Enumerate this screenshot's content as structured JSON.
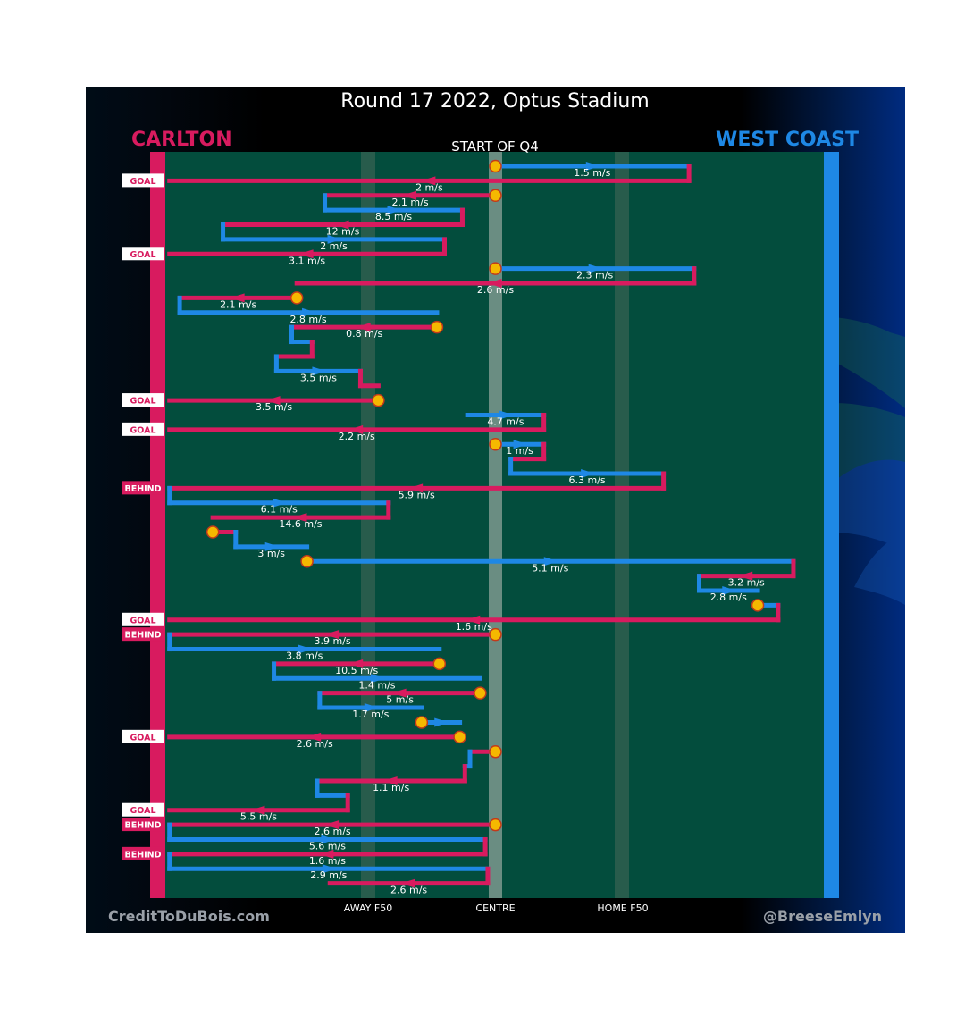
{
  "header": {
    "title": "Round 17 2022, Optus Stadium",
    "subtitle": "START OF Q4",
    "team_left": "CARLTON",
    "team_right": "WEST COAST",
    "credit_left": "CreditToDuBois.com",
    "credit_right": "@BreeseEmlyn"
  },
  "colors": {
    "carlton": "#d81b5f",
    "westcoast": "#1e88e5",
    "field": "#034d3d",
    "marker": "#f5b800"
  },
  "chart_data": {
    "type": "line",
    "x_ticks": [
      {
        "label": "AWAY F50",
        "x": -50
      },
      {
        "label": "CENTRE",
        "x": 0
      },
      {
        "label": "HOME F50",
        "x": 50
      }
    ],
    "xlim": [
      -130,
      130
    ],
    "outcomes": [
      {
        "label": "GOAL",
        "row": 1
      },
      {
        "label": "GOAL",
        "row": 6
      },
      {
        "label": "GOAL",
        "row": 16
      },
      {
        "label": "GOAL",
        "row": 18
      },
      {
        "label": "BEHIND",
        "row": 22
      },
      {
        "label": "GOAL",
        "row": 31
      },
      {
        "label": "BEHIND",
        "row": 32
      },
      {
        "label": "GOAL",
        "row": 39
      },
      {
        "label": "GOAL",
        "row": 44
      },
      {
        "label": "BEHIND",
        "row": 45
      },
      {
        "label": "BEHIND",
        "row": 47
      }
    ],
    "segments": [
      {
        "team": "westcoast",
        "row": 0,
        "x0": 0,
        "x1": 76,
        "speed": "1.5 m/s",
        "start_marker": true
      },
      {
        "team": "carlton",
        "row": 1,
        "x0": 76,
        "x1": -128,
        "speed": "2 m/s"
      },
      {
        "team": "carlton",
        "row": 2,
        "x0": 0,
        "x1": -67,
        "speed": "2.1 m/s",
        "start_marker": true
      },
      {
        "team": "westcoast",
        "row": 3,
        "x0": -67,
        "x1": -13,
        "speed": "8.5 m/s"
      },
      {
        "team": "carlton",
        "row": 4,
        "x0": -13,
        "x1": -107,
        "speed": "12 m/s"
      },
      {
        "team": "westcoast",
        "row": 5,
        "x0": -107,
        "x1": -20,
        "speed": "2 m/s"
      },
      {
        "team": "carlton",
        "row": 6,
        "x0": -20,
        "x1": -128,
        "speed": "3.1 m/s"
      },
      {
        "team": "westcoast",
        "row": 7,
        "x0": 0,
        "x1": 78,
        "speed": "2.3 m/s",
        "start_marker": true
      },
      {
        "team": "carlton",
        "row": 8,
        "x0": 78,
        "x1": -78,
        "speed": "2.6 m/s"
      },
      {
        "team": "carlton",
        "row": 9,
        "x0": -78,
        "x1": -124,
        "speed": "2.1 m/s",
        "start_marker": true
      },
      {
        "team": "westcoast",
        "row": 10,
        "x0": -124,
        "x1": -23,
        "speed": "2.8 m/s"
      },
      {
        "team": "carlton",
        "row": 11,
        "x0": -23,
        "x1": -80,
        "speed": "0.8 m/s",
        "start_marker": true
      },
      {
        "team": "westcoast",
        "row": 12,
        "x0": -80,
        "x1": -72,
        "speed": ""
      },
      {
        "team": "carlton",
        "row": 13,
        "x0": -72,
        "x1": -86,
        "speed": ""
      },
      {
        "team": "westcoast",
        "row": 14,
        "x0": -86,
        "x1": -53,
        "speed": "3.5 m/s"
      },
      {
        "team": "carlton",
        "row": 15,
        "x0": -53,
        "x1": -46,
        "speed": ""
      },
      {
        "team": "carlton",
        "row": 16,
        "x0": -46,
        "x1": -128,
        "speed": "3.5 m/s",
        "start_marker": true
      },
      {
        "team": "westcoast",
        "row": 17,
        "x0": -11,
        "x1": 19,
        "speed": "4.7 m/s"
      },
      {
        "team": "carlton",
        "row": 18,
        "x0": 19,
        "x1": -128,
        "speed": "2.2 m/s"
      },
      {
        "team": "westcoast",
        "row": 19,
        "x0": 0,
        "x1": 19,
        "speed": "1 m/s",
        "start_marker": true
      },
      {
        "team": "carlton",
        "row": 20,
        "x0": 19,
        "x1": 6,
        "speed": ""
      },
      {
        "team": "westcoast",
        "row": 21,
        "x0": 6,
        "x1": 66,
        "speed": "6.3 m/s"
      },
      {
        "team": "carlton",
        "row": 22,
        "x0": 66,
        "x1": -128,
        "speed": "5.9 m/s"
      },
      {
        "team": "westcoast",
        "row": 23,
        "x0": -128,
        "x1": -42,
        "speed": "6.1 m/s"
      },
      {
        "team": "carlton",
        "row": 24,
        "x0": -42,
        "x1": -111,
        "speed": "14.6 m/s"
      },
      {
        "team": "carlton",
        "row": 25,
        "x0": -111,
        "x1": -102,
        "speed": "",
        "start_marker": true
      },
      {
        "team": "westcoast",
        "row": 26,
        "x0": -102,
        "x1": -74,
        "speed": "3 m/s"
      },
      {
        "team": "westcoast",
        "row": 27,
        "x0": -74,
        "x1": 117,
        "speed": "5.1 m/s",
        "start_marker": true
      },
      {
        "team": "carlton",
        "row": 28,
        "x0": 117,
        "x1": 80,
        "speed": "3.2 m/s"
      },
      {
        "team": "westcoast",
        "row": 29,
        "x0": 80,
        "x1": 103,
        "speed": "2.8 m/s"
      },
      {
        "team": "westcoast",
        "row": 30,
        "x0": 103,
        "x1": 111,
        "speed": "",
        "start_marker": true
      },
      {
        "team": "carlton",
        "row": 31,
        "x0": 111,
        "x1": -128,
        "speed": "1.6 m/s"
      },
      {
        "team": "carlton",
        "row": 32,
        "x0": 0,
        "x1": -128,
        "speed": "3.9 m/s",
        "start_marker": true
      },
      {
        "team": "westcoast",
        "row": 33,
        "x0": -128,
        "x1": -22,
        "speed": "3.8 m/s"
      },
      {
        "team": "carlton",
        "row": 34,
        "x0": -22,
        "x1": -87,
        "speed": "10.5 m/s",
        "start_marker": true
      },
      {
        "team": "westcoast",
        "row": 35,
        "x0": -87,
        "x1": -6,
        "speed": "1.4 m/s"
      },
      {
        "team": "carlton",
        "row": 36,
        "x0": -6,
        "x1": -69,
        "speed": "5 m/s",
        "start_marker": true
      },
      {
        "team": "westcoast",
        "row": 37,
        "x0": -69,
        "x1": -29,
        "speed": "1.7 m/s"
      },
      {
        "team": "westcoast",
        "row": 38,
        "x0": -29,
        "x1": -14,
        "speed": "",
        "start_marker": true
      },
      {
        "team": "carlton",
        "row": 39,
        "x0": -14,
        "x1": -128,
        "speed": "2.6 m/s",
        "start_marker": true
      },
      {
        "team": "carlton",
        "row": 40,
        "x0": 0,
        "x1": -10,
        "speed": "",
        "start_marker": true
      },
      {
        "team": "westcoast",
        "row": 41,
        "x0": -10,
        "x1": -12,
        "speed": ""
      },
      {
        "team": "carlton",
        "row": 42,
        "x0": -12,
        "x1": -70,
        "speed": "1.1 m/s"
      },
      {
        "team": "westcoast",
        "row": 43,
        "x0": -70,
        "x1": -58,
        "speed": ""
      },
      {
        "team": "carlton",
        "row": 44,
        "x0": -58,
        "x1": -128,
        "speed": "5.5 m/s"
      },
      {
        "team": "carlton",
        "row": 45,
        "x0": 0,
        "x1": -128,
        "speed": "2.6 m/s",
        "start_marker": true
      },
      {
        "team": "westcoast",
        "row": 46,
        "x0": -128,
        "x1": -4,
        "speed": "5.6 m/s"
      },
      {
        "team": "carlton",
        "row": 47,
        "x0": -4,
        "x1": -128,
        "speed": "1.6 m/s"
      },
      {
        "team": "westcoast",
        "row": 48,
        "x0": -128,
        "x1": -3,
        "speed": "2.9 m/s"
      },
      {
        "team": "carlton",
        "row": 49,
        "x0": -3,
        "x1": -65,
        "speed": "2.6 m/s"
      }
    ]
  }
}
